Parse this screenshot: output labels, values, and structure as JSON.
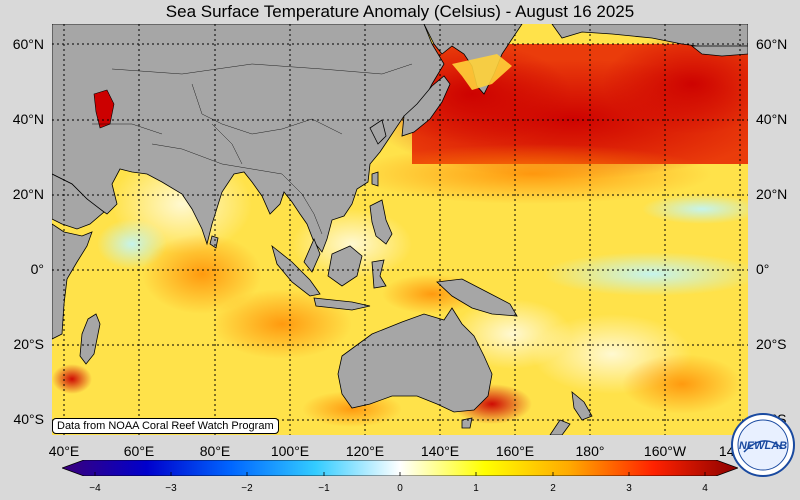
{
  "title": "Sea Surface Temperature Anomaly (Celsius) - August 16 2025",
  "lat_labels": [
    "60°N",
    "40°N",
    "20°N",
    "0°",
    "20°S",
    "40°S"
  ],
  "lon_labels": [
    "40°E",
    "60°E",
    "80°E",
    "100°E",
    "120°E",
    "140°E",
    "160°E",
    "180°",
    "160°W",
    "140°W"
  ],
  "credit": "Data from NOAA Coral Reef Watch Program",
  "colorbar": {
    "ticks": [
      "−4",
      "−3",
      "−2",
      "−1",
      "0",
      "1",
      "2",
      "3",
      "4"
    ],
    "colors": [
      "#3b007a",
      "#0000cc",
      "#0066ff",
      "#33ccff",
      "#ffffff",
      "#ffff00",
      "#ffaa00",
      "#ff2200",
      "#8a0000"
    ]
  },
  "logo": {
    "text": "NEWLAB"
  },
  "colors": {
    "land": "#a6a6a6",
    "background": "#d9d9d9"
  }
}
